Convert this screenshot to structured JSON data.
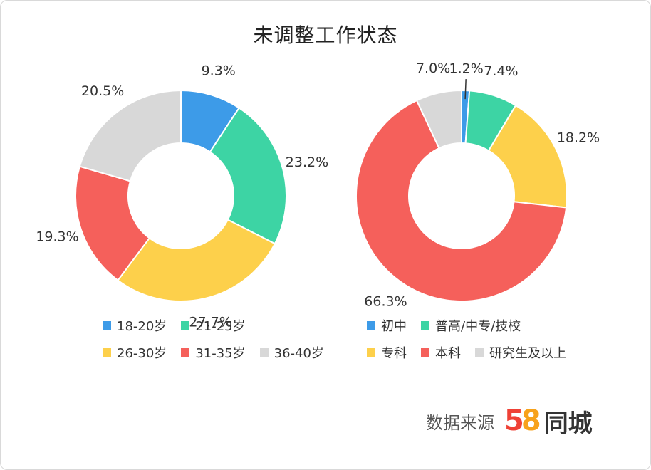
{
  "title": "未调整工作状态",
  "chart_data": [
    {
      "type": "pie",
      "variant": "donut",
      "categories": [
        "18-20岁",
        "21-25岁",
        "26-30岁",
        "31-35岁",
        "36-40岁"
      ],
      "values": [
        9.3,
        23.2,
        27.7,
        19.3,
        20.5
      ],
      "value_labels": [
        "9.3%",
        "23.2%",
        "27.7%",
        "19.3%",
        "20.5%"
      ],
      "colors": [
        "#3d9be8",
        "#3dd4a4",
        "#fdd04b",
        "#f5605b",
        "#d8d8d8"
      ],
      "legend_rows": [
        [
          0,
          1
        ],
        [
          2,
          3,
          4
        ]
      ]
    },
    {
      "type": "pie",
      "variant": "donut",
      "categories": [
        "初中",
        "普高/中专/技校",
        "专科",
        "本科",
        "研究生及以上"
      ],
      "values": [
        1.2,
        7.4,
        18.2,
        66.3,
        7.0
      ],
      "value_labels": [
        "1.2%",
        "7.4%",
        "18.2%",
        "66.3%",
        "7.0%"
      ],
      "colors": [
        "#3d9be8",
        "#3dd4a4",
        "#fdd04b",
        "#f5605b",
        "#d8d8d8"
      ],
      "legend_rows": [
        [
          0,
          1
        ],
        [
          2,
          3,
          4
        ]
      ]
    }
  ],
  "source": {
    "label": "数据来源",
    "logo_digit_1": "5",
    "logo_digit_2": "8",
    "logo_text": "同城"
  }
}
